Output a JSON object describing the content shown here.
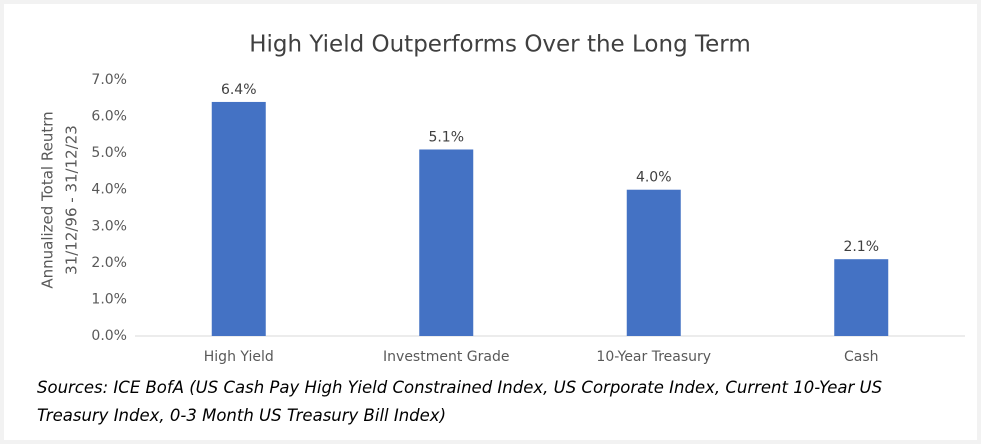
{
  "chart_data": {
    "type": "bar",
    "title": "High Yield Outperforms Over the Long Term",
    "y_label": [
      "Annualized Total Reutrn",
      "31/12/96 - 31/12/23"
    ],
    "categories": [
      "High Yield",
      "Investment Grade",
      "10-Year Treasury",
      "Cash"
    ],
    "values": [
      6.4,
      5.1,
      4.0,
      2.1
    ],
    "value_labels": [
      "6.4%",
      "5.1%",
      "4.0%",
      "2.1%"
    ],
    "color": "#4472c4",
    "ylim": [
      0,
      7
    ],
    "yticks": [
      {
        "value": 0,
        "label": "0.0%"
      },
      {
        "value": 1,
        "label": "1.0%"
      },
      {
        "value": 2,
        "label": "2.0%"
      },
      {
        "value": 3,
        "label": "3.0%"
      },
      {
        "value": 4,
        "label": "4.0%"
      },
      {
        "value": 5,
        "label": "5.0%"
      },
      {
        "value": 6,
        "label": "6.0%"
      },
      {
        "value": 7,
        "label": "7.0%"
      }
    ],
    "grid": false,
    "note": "Sources: ICE BofA (US Cash Pay High Yield Constrained Index, US Corporate Index, Current 10-Year US Treasury Index, 0-3 Month US Treasury Bill Index)"
  }
}
